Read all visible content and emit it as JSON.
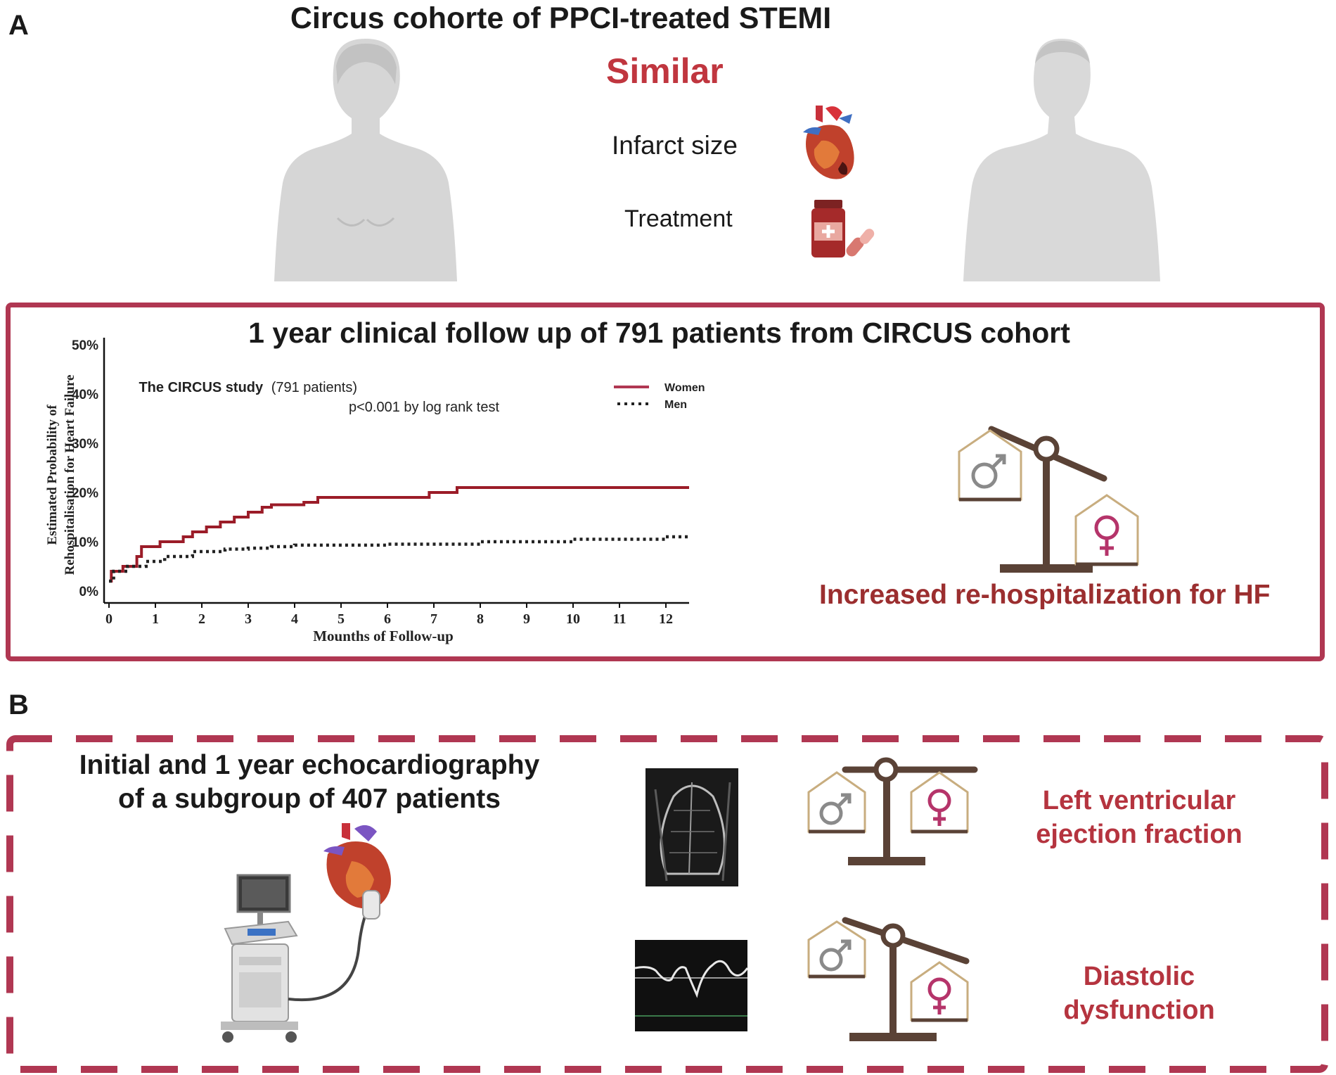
{
  "panel_a": {
    "letter": "A",
    "title": "Circus cohorte of PPCI-treated STEMI",
    "similar_label": "Similar",
    "items": [
      {
        "label": "Infarct size",
        "icon": "heart-icon"
      },
      {
        "label": "Treatment",
        "icon": "medication-icon"
      }
    ],
    "followup_title": "1 year clinical follow up of 791 patients from CIRCUS cohort",
    "result": "Increased re-hospitalization for HF",
    "legend": {
      "study_name": "The CIRCUS study",
      "study_detail": "(791 patients)",
      "pvalue": "p<0.001 by log rank test"
    }
  },
  "panel_b": {
    "letter": "B",
    "title_line1": "Initial and 1 year echocardiography",
    "title_line2": "of a subgroup of 407 patients",
    "result_lvef_line1": "Left ventricular",
    "result_lvef_line2": "ejection fraction",
    "result_diastolic_line1": "Diastolic",
    "result_diastolic_line2": "dysfunction"
  },
  "colors": {
    "women": "#9b1c28",
    "men": "#222222",
    "accent": "#b03752",
    "scale": "#5a4236",
    "female_symbol": "#b5346a",
    "male_symbol": "#8a8a8a"
  },
  "chart_data": {
    "type": "line",
    "title": "",
    "xlabel": "Mounths of Follow-up",
    "ylabel_line1": "Estimated Probability of",
    "ylabel_line2": "Rehospitalisation for Heart Failure",
    "xlim": [
      0,
      12.5
    ],
    "ylim": [
      0,
      50
    ],
    "x_ticks": [
      "0",
      "1",
      "2",
      "3",
      "4",
      "5",
      "6",
      "7",
      "8",
      "9",
      "10",
      "11",
      "12"
    ],
    "y_ticks": [
      "0%",
      "10%",
      "20%",
      "30%",
      "40%",
      "50%"
    ],
    "grid": false,
    "legend_position": "top-center",
    "series": [
      {
        "name": "Women",
        "style": "solid",
        "x": [
          0,
          0.05,
          0.3,
          0.6,
          0.7,
          1.1,
          1.6,
          1.8,
          2.1,
          2.4,
          2.7,
          3.0,
          3.3,
          3.5,
          4.2,
          4.5,
          6.9,
          7.5,
          12.5
        ],
        "y": [
          2,
          4,
          5,
          7,
          9,
          10,
          11,
          12,
          13,
          14,
          15,
          16,
          17,
          17.5,
          18,
          19,
          20,
          21,
          21
        ]
      },
      {
        "name": "Men",
        "style": "dotted",
        "x": [
          0,
          0.1,
          0.4,
          0.8,
          1.2,
          1.8,
          2.5,
          3.0,
          3.5,
          4.0,
          6.0,
          8.0,
          10.0,
          12.0,
          12.5
        ],
        "y": [
          2,
          4,
          5,
          6,
          7,
          8,
          8.5,
          8.7,
          9,
          9.3,
          9.5,
          10,
          10.5,
          11,
          11.2
        ]
      }
    ]
  }
}
